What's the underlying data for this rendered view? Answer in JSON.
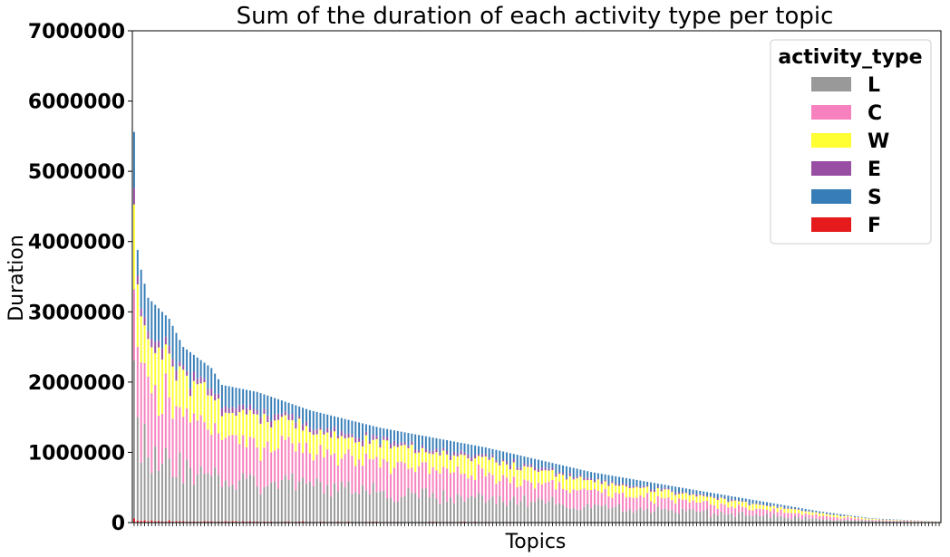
{
  "chart_data": {
    "type": "bar",
    "stacked": true,
    "title": "Sum of the duration of each activity type per topic",
    "xlabel": "Topics",
    "ylabel": "Duration",
    "ylim": [
      0,
      7000000
    ],
    "yticks": [
      "0",
      "1000000",
      "2000000",
      "3000000",
      "4000000",
      "5000000",
      "6000000",
      "7000000"
    ],
    "grid": false,
    "legend_placement": "top-right",
    "legend_title": "activity_type",
    "legend_order": [
      "L",
      "C",
      "W",
      "E",
      "S",
      "F"
    ],
    "stack_order": [
      "F",
      "L",
      "C",
      "W",
      "E",
      "S"
    ],
    "colors": {
      "L": "#999999",
      "C": "#f781bf",
      "W": "#ffff33",
      "E": "#984ea3",
      "S": "#377eb8",
      "F": "#e41a1c"
    },
    "n_topics": 230,
    "total_profile": [
      [
        0,
        5560000
      ],
      [
        1,
        3880000
      ],
      [
        2,
        3600000
      ],
      [
        4,
        3200000
      ],
      [
        6,
        3100000
      ],
      [
        10,
        2900000
      ],
      [
        14,
        2500000
      ],
      [
        18,
        2350000
      ],
      [
        22,
        2200000
      ],
      [
        25,
        1960000
      ],
      [
        35,
        1860000
      ],
      [
        50,
        1600000
      ],
      [
        70,
        1350000
      ],
      [
        100,
        1070000
      ],
      [
        130,
        720000
      ],
      [
        160,
        460000
      ],
      [
        180,
        290000
      ],
      [
        195,
        160000
      ],
      [
        210,
        60000
      ],
      [
        229,
        15000
      ]
    ],
    "shares": {
      "F": 0.008,
      "L": 0.32,
      "C": 0.3,
      "W": 0.2,
      "E": 0.04,
      "S": 0.132
    }
  }
}
